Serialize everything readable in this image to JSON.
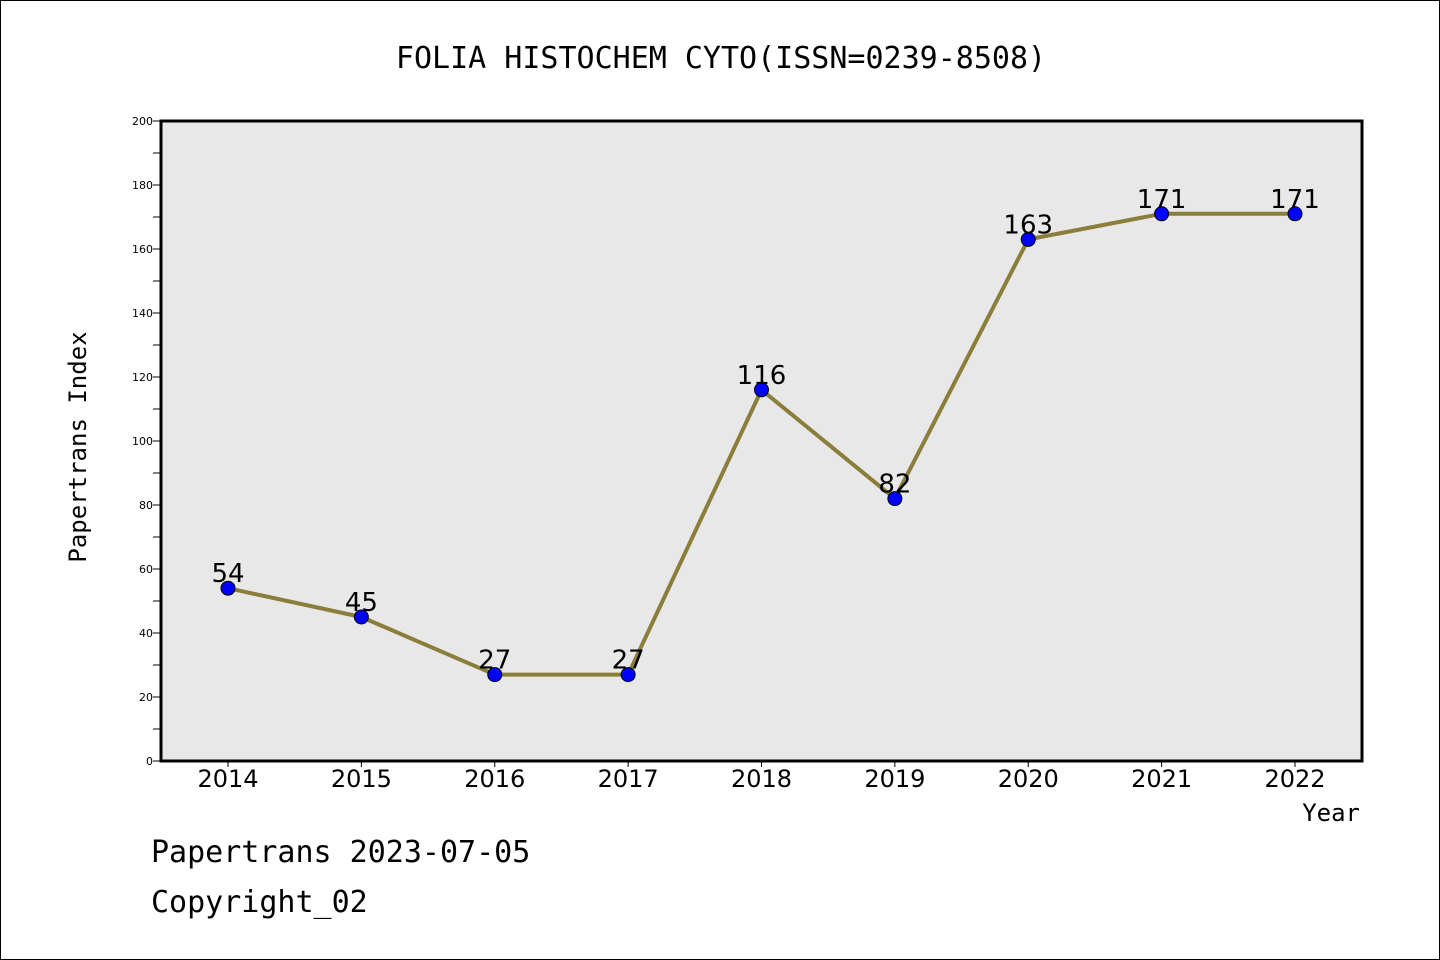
{
  "chart_data": {
    "type": "line",
    "title": "FOLIA HISTOCHEM CYTO(ISSN=0239-8508)",
    "xlabel": "Year",
    "ylabel": "Papertrans Index",
    "categories": [
      "2014",
      "2015",
      "2016",
      "2017",
      "2018",
      "2019",
      "2020",
      "2021",
      "2022"
    ],
    "series": [
      {
        "values": [
          54,
          45,
          27,
          27,
          116,
          82,
          163,
          171,
          171
        ],
        "line_color": "#8b7d3a",
        "marker_color": "#0000ff"
      }
    ],
    "ylim": [
      0,
      200
    ],
    "yticks": [
      0,
      20,
      40,
      60,
      80,
      100,
      120,
      140,
      160,
      180,
      200
    ],
    "data_labels": true,
    "grid": false,
    "legend": "none",
    "plot_background": "#e8e8e8"
  },
  "footer": {
    "line1": "Papertrans 2023-07-05",
    "line2": "Copyright_02"
  }
}
